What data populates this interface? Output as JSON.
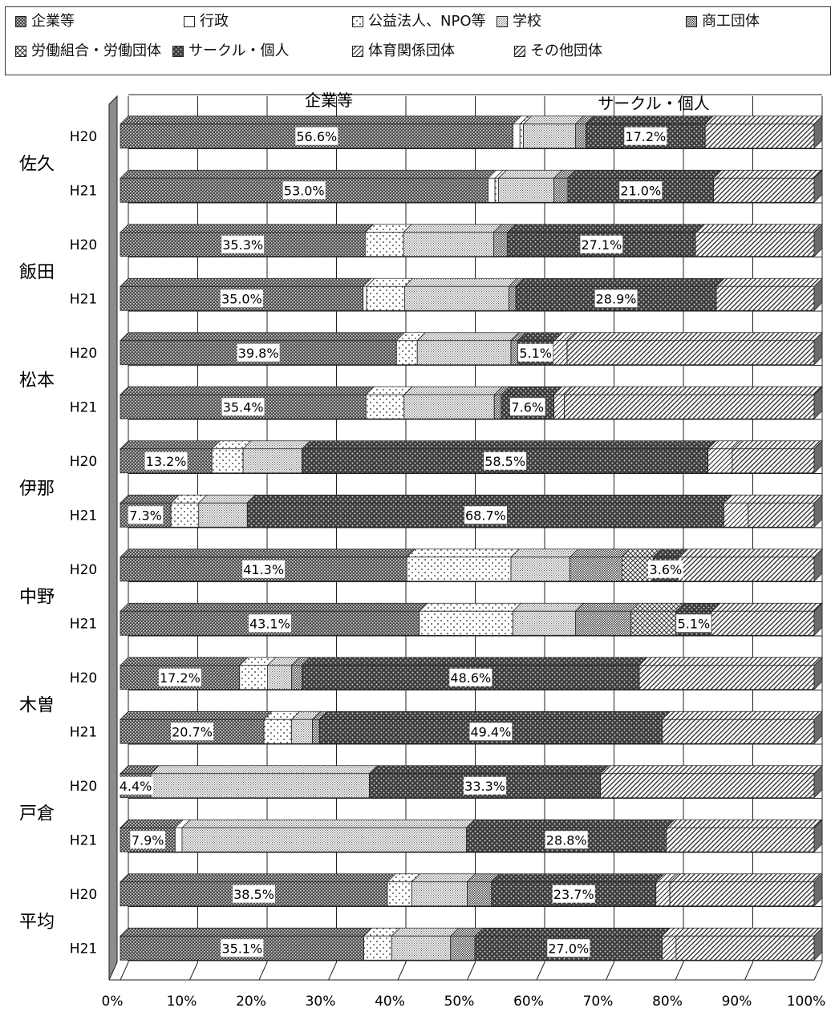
{
  "chart_data": {
    "type": "bar",
    "orientation": "horizontal",
    "stacked": true,
    "percent_stacked": true,
    "groups": [
      {
        "name": "佐久",
        "rows": [
          "H20",
          "H21"
        ]
      },
      {
        "name": "飯田",
        "rows": [
          "H20",
          "H21"
        ]
      },
      {
        "name": "松本",
        "rows": [
          "H20",
          "H21"
        ]
      },
      {
        "name": "伊那",
        "rows": [
          "H20",
          "H21"
        ]
      },
      {
        "name": "中野",
        "rows": [
          "H20",
          "H21"
        ]
      },
      {
        "name": "木曽",
        "rows": [
          "H20",
          "H21"
        ]
      },
      {
        "name": "戸倉",
        "rows": [
          "H20",
          "H21"
        ]
      },
      {
        "name": "平均",
        "rows": [
          "H20",
          "H21"
        ]
      }
    ],
    "series": [
      {
        "name": "企業等",
        "values": [
          56.6,
          53.0,
          35.3,
          35.0,
          39.8,
          35.4,
          13.2,
          7.3,
          41.3,
          43.1,
          17.2,
          20.7,
          4.4,
          7.9,
          38.5,
          35.1
        ]
      },
      {
        "name": "行政",
        "values": [
          1.0,
          1.0,
          0,
          0.5,
          0,
          0,
          0,
          0,
          0,
          0,
          0,
          0,
          0,
          1.0,
          0,
          0
        ]
      },
      {
        "name": "公益法人、NPO等",
        "values": [
          0.5,
          0.5,
          5.5,
          5.5,
          3.0,
          5.5,
          4.5,
          4.0,
          15.0,
          13.5,
          4.0,
          4.0,
          0,
          0,
          3.5,
          4.0
        ]
      },
      {
        "name": "学校",
        "values": [
          7.5,
          8.0,
          13.0,
          15.0,
          13.5,
          13.0,
          8.5,
          7.0,
          8.5,
          9.0,
          3.5,
          3.0,
          31.5,
          41.0,
          8.0,
          8.5
        ]
      },
      {
        "name": "商工団体",
        "values": [
          1.5,
          2.0,
          2.0,
          1.0,
          1.0,
          1.0,
          0,
          0,
          7.5,
          8.0,
          1.5,
          1.0,
          0,
          0,
          3.5,
          3.5
        ]
      },
      {
        "name": "労働組合・労働団体",
        "values": [
          0,
          0,
          0,
          0,
          0,
          0,
          0,
          0,
          4.5,
          6.5,
          0,
          0,
          0,
          0,
          0,
          0
        ]
      },
      {
        "name": "サークル・個人",
        "values": [
          17.2,
          21.0,
          27.1,
          28.9,
          5.1,
          7.6,
          58.5,
          68.7,
          3.6,
          5.1,
          48.6,
          49.4,
          33.3,
          28.8,
          23.7,
          27.0
        ]
      },
      {
        "name": "体育関係団体",
        "values": [
          0,
          0,
          0,
          0,
          2.0,
          1.5,
          3.5,
          3.5,
          0,
          0,
          0,
          0,
          0,
          0,
          2.0,
          2.0
        ]
      },
      {
        "name": "その他団体",
        "values": [
          15.7,
          14.5,
          17.1,
          14.1,
          35.6,
          36.0,
          11.8,
          9.5,
          19.6,
          14.8,
          25.2,
          21.9,
          30.8,
          21.3,
          20.8,
          19.9
        ]
      }
    ],
    "data_labels": [
      {
        "series": "企業等",
        "values": [
          "56.6%",
          "53.0%",
          "35.3%",
          "35.0%",
          "39.8%",
          "35.4%",
          "13.2%",
          "7.3%",
          "41.3%",
          "43.1%",
          "17.2%",
          "20.7%",
          "4.4%",
          "7.9%",
          "38.5%",
          "35.1%"
        ]
      },
      {
        "series": "サークル・個人",
        "values": [
          "17.2%",
          "21.0%",
          "27.1%",
          "28.9%",
          "5.1%",
          "7.6%",
          "58.5%",
          "68.7%",
          "3.6%",
          "5.1%",
          "48.6%",
          "49.4%",
          "33.3%",
          "28.8%",
          "23.7%",
          "27.0%"
        ]
      }
    ],
    "column_headers": [
      "企業等",
      "サークル・個人"
    ],
    "x_ticks": [
      "0%",
      "10%",
      "20%",
      "30%",
      "40%",
      "50%",
      "60%",
      "70%",
      "80%",
      "90%",
      "100%"
    ],
    "xlim": [
      0,
      100
    ],
    "grid": true,
    "legend_position": "top"
  },
  "colors": {
    "企業等": "#6e6e6e",
    "行政": "#ffffff",
    "公益法人、NPO等": "#e8e8e8",
    "学校": "#bdbdbd",
    "商工団体": "#a8a8a8",
    "労働組合・労働団体": "#999999",
    "サークル・個人": "#5a5a5a",
    "体育関係団体": "#d0d0d0",
    "その他団体": "#c6c6c6"
  }
}
